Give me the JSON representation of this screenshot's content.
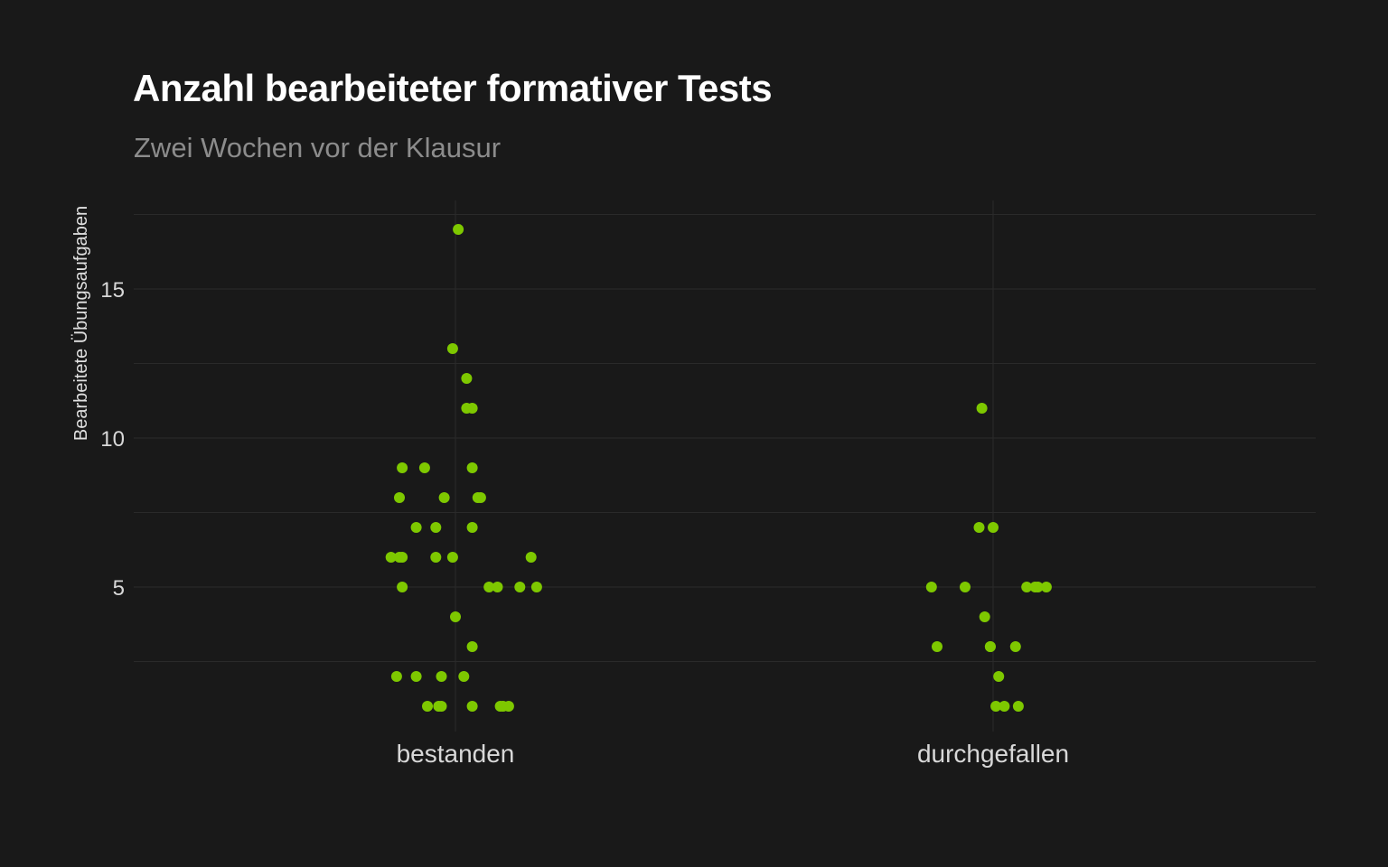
{
  "chart_data": {
    "type": "scatter",
    "title": "Anzahl bearbeiteter formativer Tests",
    "subtitle": "Zwei Wochen vor der Klausur",
    "ylabel": "Bearbeitete Übungsaufgaben",
    "xlabel": "",
    "categories": [
      "bestanden",
      "durchgefallen"
    ],
    "y_ticks": [
      5,
      10,
      15
    ],
    "ylim": [
      0,
      18
    ],
    "grid": true,
    "point_color": "#7ec800",
    "series": [
      {
        "category": "bestanden",
        "points": [
          {
            "jitter": 0.01,
            "y": 17
          },
          {
            "jitter": -0.01,
            "y": 13
          },
          {
            "jitter": 0.04,
            "y": 12
          },
          {
            "jitter": 0.04,
            "y": 11
          },
          {
            "jitter": 0.06,
            "y": 11
          },
          {
            "jitter": -0.19,
            "y": 9
          },
          {
            "jitter": -0.11,
            "y": 9
          },
          {
            "jitter": 0.06,
            "y": 9
          },
          {
            "jitter": -0.2,
            "y": 8
          },
          {
            "jitter": -0.04,
            "y": 8
          },
          {
            "jitter": 0.08,
            "y": 8
          },
          {
            "jitter": 0.09,
            "y": 8
          },
          {
            "jitter": -0.14,
            "y": 7
          },
          {
            "jitter": -0.07,
            "y": 7
          },
          {
            "jitter": 0.06,
            "y": 7
          },
          {
            "jitter": -0.23,
            "y": 6
          },
          {
            "jitter": -0.19,
            "y": 6
          },
          {
            "jitter": -0.2,
            "y": 6
          },
          {
            "jitter": -0.07,
            "y": 6
          },
          {
            "jitter": -0.01,
            "y": 6
          },
          {
            "jitter": 0.27,
            "y": 6
          },
          {
            "jitter": -0.19,
            "y": 5
          },
          {
            "jitter": 0.12,
            "y": 5
          },
          {
            "jitter": 0.15,
            "y": 5
          },
          {
            "jitter": 0.23,
            "y": 5
          },
          {
            "jitter": 0.29,
            "y": 5
          },
          {
            "jitter": 0.0,
            "y": 4
          },
          {
            "jitter": 0.06,
            "y": 3
          },
          {
            "jitter": -0.21,
            "y": 2
          },
          {
            "jitter": -0.14,
            "y": 2
          },
          {
            "jitter": -0.05,
            "y": 2
          },
          {
            "jitter": 0.03,
            "y": 2
          },
          {
            "jitter": -0.1,
            "y": 1
          },
          {
            "jitter": -0.06,
            "y": 1
          },
          {
            "jitter": -0.05,
            "y": 1
          },
          {
            "jitter": 0.06,
            "y": 1
          },
          {
            "jitter": 0.16,
            "y": 1
          },
          {
            "jitter": 0.17,
            "y": 1
          },
          {
            "jitter": 0.19,
            "y": 1
          }
        ]
      },
      {
        "category": "durchgefallen",
        "points": [
          {
            "jitter": -0.04,
            "y": 11
          },
          {
            "jitter": -0.05,
            "y": 7
          },
          {
            "jitter": 0.0,
            "y": 7
          },
          {
            "jitter": -0.22,
            "y": 5
          },
          {
            "jitter": -0.1,
            "y": 5
          },
          {
            "jitter": -0.03,
            "y": 4
          },
          {
            "jitter": 0.12,
            "y": 5
          },
          {
            "jitter": 0.15,
            "y": 5
          },
          {
            "jitter": 0.16,
            "y": 5
          },
          {
            "jitter": 0.19,
            "y": 5
          },
          {
            "jitter": -0.2,
            "y": 3
          },
          {
            "jitter": -0.01,
            "y": 3
          },
          {
            "jitter": -0.01,
            "y": 3
          },
          {
            "jitter": 0.08,
            "y": 3
          },
          {
            "jitter": 0.02,
            "y": 2
          },
          {
            "jitter": 0.01,
            "y": 1
          },
          {
            "jitter": 0.04,
            "y": 1
          },
          {
            "jitter": 0.09,
            "y": 1
          }
        ]
      }
    ]
  }
}
